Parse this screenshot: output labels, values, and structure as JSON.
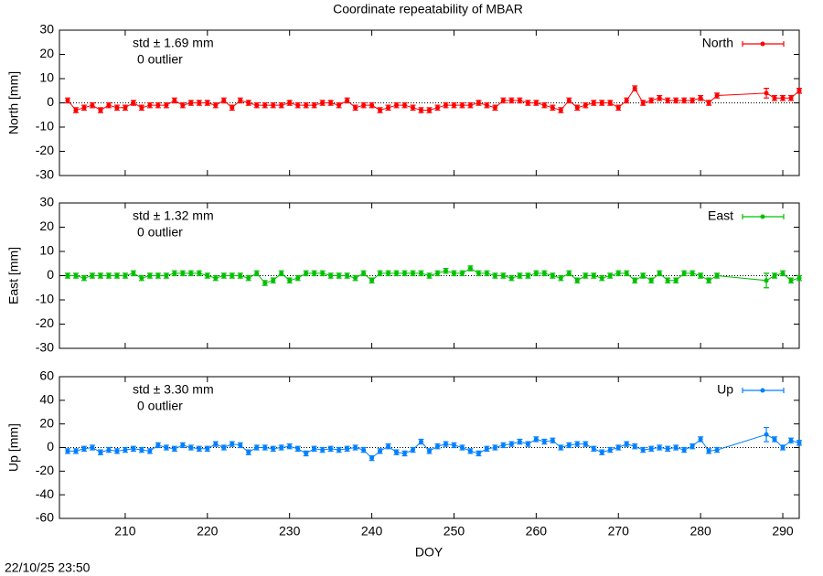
{
  "title": "Coordinate repeatability of MBAR",
  "xlabel": "DOY",
  "timestamp": "22/10/25 23:50",
  "chart_data": [
    {
      "type": "line",
      "ylabel": "North [mm]",
      "std_text": "std ± 1.69 mm",
      "outlier_text": "0 outlier",
      "legend": "upper right",
      "zero_line": true,
      "x": [
        203,
        204,
        205,
        206,
        207,
        208,
        209,
        210,
        211,
        212,
        213,
        214,
        215,
        216,
        217,
        218,
        219,
        220,
        221,
        222,
        223,
        224,
        225,
        226,
        227,
        228,
        229,
        230,
        231,
        232,
        233,
        234,
        235,
        236,
        237,
        238,
        239,
        240,
        241,
        242,
        243,
        244,
        245,
        246,
        247,
        248,
        249,
        250,
        251,
        252,
        253,
        254,
        255,
        256,
        257,
        258,
        259,
        260,
        261,
        262,
        263,
        264,
        265,
        266,
        267,
        268,
        269,
        270,
        271,
        272,
        273,
        274,
        275,
        276,
        277,
        278,
        279,
        280,
        281,
        282,
        288,
        289,
        290,
        291,
        292
      ],
      "xlim": [
        202,
        292
      ],
      "xticks": [
        210,
        220,
        230,
        240,
        250,
        260,
        270,
        280,
        290
      ],
      "ylim": [
        -30,
        30
      ],
      "yticks": [
        -30,
        -20,
        -10,
        0,
        10,
        20,
        30
      ],
      "series": [
        {
          "name": "North",
          "color": "#ff0000",
          "values": [
            1,
            -3,
            -2,
            -1,
            -3,
            -1,
            -2,
            -2,
            0,
            -2,
            -1,
            -1,
            -1,
            1,
            -1,
            0,
            0,
            0,
            -1,
            1,
            -2,
            1,
            0,
            -1,
            -1,
            -1,
            -1,
            0,
            -1,
            -1,
            -1,
            0,
            0,
            -1,
            1,
            -2,
            -1,
            -1,
            -3,
            -2,
            -1,
            -1,
            -2,
            -3,
            -3,
            -2,
            -1,
            -1,
            -1,
            -1,
            0,
            -1,
            -2,
            1,
            1,
            1,
            0,
            0,
            -1,
            -2,
            -3,
            1,
            -2,
            -1,
            0,
            0,
            0,
            -2,
            1,
            6,
            0,
            1,
            2,
            1,
            1,
            1,
            1,
            2,
            0,
            3,
            4,
            2,
            2,
            2,
            5
          ],
          "errors": [
            1,
            1,
            1,
            1,
            1,
            1,
            1,
            1,
            1,
            1,
            1,
            1,
            1,
            1,
            1,
            1,
            1,
            1,
            1,
            1,
            1,
            1,
            1,
            1,
            1,
            1,
            1,
            1,
            1,
            1,
            1,
            1,
            1,
            1,
            1,
            1,
            1,
            1,
            1,
            1,
            1,
            1,
            1,
            1,
            1,
            1,
            1,
            1,
            1,
            1,
            1,
            1,
            1,
            1,
            1,
            1,
            1,
            1,
            1,
            1,
            1,
            1,
            1,
            1,
            1,
            1,
            1,
            1,
            1,
            1,
            1,
            1,
            1,
            1,
            1,
            1,
            1,
            1,
            1,
            1,
            2,
            1,
            1,
            1,
            1
          ]
        }
      ]
    },
    {
      "type": "line",
      "ylabel": "East [mm]",
      "std_text": "std ± 1.32 mm",
      "outlier_text": "0 outlier",
      "legend": "upper right",
      "zero_line": true,
      "x": [
        203,
        204,
        205,
        206,
        207,
        208,
        209,
        210,
        211,
        212,
        213,
        214,
        215,
        216,
        217,
        218,
        219,
        220,
        221,
        222,
        223,
        224,
        225,
        226,
        227,
        228,
        229,
        230,
        231,
        232,
        233,
        234,
        235,
        236,
        237,
        238,
        239,
        240,
        241,
        242,
        243,
        244,
        245,
        246,
        247,
        248,
        249,
        250,
        251,
        252,
        253,
        254,
        255,
        256,
        257,
        258,
        259,
        260,
        261,
        262,
        263,
        264,
        265,
        266,
        267,
        268,
        269,
        270,
        271,
        272,
        273,
        274,
        275,
        276,
        277,
        278,
        279,
        280,
        281,
        282,
        288,
        289,
        290,
        291,
        292
      ],
      "xlim": [
        202,
        292
      ],
      "xticks": [
        210,
        220,
        230,
        240,
        250,
        260,
        270,
        280,
        290
      ],
      "ylim": [
        -30,
        30
      ],
      "yticks": [
        -30,
        -20,
        -10,
        0,
        10,
        20,
        30
      ],
      "series": [
        {
          "name": "East",
          "color": "#00c000",
          "values": [
            0,
            0,
            -1,
            0,
            0,
            0,
            0,
            0,
            1,
            -1,
            0,
            0,
            0,
            1,
            1,
            1,
            1,
            0,
            -1,
            0,
            0,
            0,
            -1,
            1,
            -3,
            -2,
            1,
            -2,
            -1,
            1,
            1,
            1,
            0,
            0,
            0,
            -1,
            1,
            -2,
            1,
            1,
            1,
            1,
            1,
            1,
            0,
            1,
            2,
            1,
            1,
            3,
            1,
            1,
            0,
            0,
            -1,
            0,
            0,
            1,
            1,
            0,
            -1,
            1,
            -2,
            0,
            0,
            -1,
            0,
            1,
            1,
            -2,
            0,
            -2,
            1,
            -2,
            -2,
            1,
            1,
            0,
            -2,
            0,
            -2,
            0,
            1,
            -2,
            -1
          ],
          "errors": [
            1,
            1,
            1,
            1,
            1,
            1,
            1,
            1,
            1,
            1,
            1,
            1,
            1,
            1,
            1,
            1,
            1,
            1,
            1,
            1,
            1,
            1,
            1,
            1,
            1,
            1,
            1,
            1,
            1,
            1,
            1,
            1,
            1,
            1,
            1,
            1,
            1,
            1,
            1,
            1,
            1,
            1,
            1,
            1,
            1,
            1,
            1,
            1,
            1,
            1,
            1,
            1,
            1,
            1,
            1,
            1,
            1,
            1,
            1,
            1,
            1,
            1,
            1,
            1,
            1,
            1,
            1,
            1,
            1,
            1,
            1,
            1,
            1,
            1,
            1,
            1,
            1,
            1,
            1,
            1,
            3,
            1,
            1,
            1,
            1
          ]
        }
      ]
    },
    {
      "type": "line",
      "ylabel": "Up [mm]",
      "std_text": "std ± 3.30 mm",
      "outlier_text": "0 outlier",
      "legend": "upper right",
      "zero_line": true,
      "x": [
        203,
        204,
        205,
        206,
        207,
        208,
        209,
        210,
        211,
        212,
        213,
        214,
        215,
        216,
        217,
        218,
        219,
        220,
        221,
        222,
        223,
        224,
        225,
        226,
        227,
        228,
        229,
        230,
        231,
        232,
        233,
        234,
        235,
        236,
        237,
        238,
        239,
        240,
        241,
        242,
        243,
        244,
        245,
        246,
        247,
        248,
        249,
        250,
        251,
        252,
        253,
        254,
        255,
        256,
        257,
        258,
        259,
        260,
        261,
        262,
        263,
        264,
        265,
        266,
        267,
        268,
        269,
        270,
        271,
        272,
        273,
        274,
        275,
        276,
        277,
        278,
        279,
        280,
        281,
        282,
        288,
        289,
        290,
        291,
        292
      ],
      "xlim": [
        202,
        292
      ],
      "xticks": [
        210,
        220,
        230,
        240,
        250,
        260,
        270,
        280,
        290
      ],
      "ylim": [
        -60,
        60
      ],
      "yticks": [
        -60,
        -40,
        -20,
        0,
        20,
        40,
        60
      ],
      "series": [
        {
          "name": "Up",
          "color": "#0080ff",
          "values": [
            -3,
            -3,
            -1,
            0,
            -4,
            -2,
            -3,
            -2,
            -1,
            -2,
            -3,
            2,
            0,
            -1,
            2,
            0,
            -1,
            -1,
            3,
            0,
            3,
            2,
            -4,
            0,
            0,
            -1,
            0,
            1,
            -1,
            -5,
            -1,
            -2,
            -1,
            -2,
            -1,
            0,
            -2,
            -9,
            -3,
            1,
            -4,
            -5,
            -2,
            5,
            -3,
            1,
            3,
            2,
            0,
            -3,
            -5,
            -1,
            0,
            2,
            3,
            5,
            3,
            7,
            5,
            6,
            0,
            2,
            3,
            3,
            -1,
            -4,
            -2,
            0,
            3,
            1,
            -2,
            -1,
            0,
            -1,
            0,
            -2,
            1,
            7,
            -3,
            -2,
            11,
            7,
            0,
            6,
            4
          ],
          "errors": [
            2,
            2,
            2,
            2,
            2,
            2,
            2,
            2,
            2,
            2,
            2,
            2,
            2,
            2,
            2,
            2,
            2,
            2,
            2,
            2,
            2,
            2,
            2,
            2,
            2,
            2,
            2,
            2,
            2,
            2,
            2,
            2,
            2,
            2,
            2,
            2,
            2,
            2,
            2,
            2,
            2,
            2,
            2,
            2,
            2,
            2,
            2,
            2,
            2,
            2,
            2,
            2,
            2,
            2,
            2,
            2,
            2,
            2,
            2,
            2,
            2,
            2,
            2,
            2,
            2,
            2,
            2,
            2,
            2,
            2,
            2,
            2,
            2,
            2,
            2,
            2,
            2,
            2,
            2,
            2,
            6,
            2,
            2,
            2,
            2
          ]
        }
      ]
    }
  ]
}
